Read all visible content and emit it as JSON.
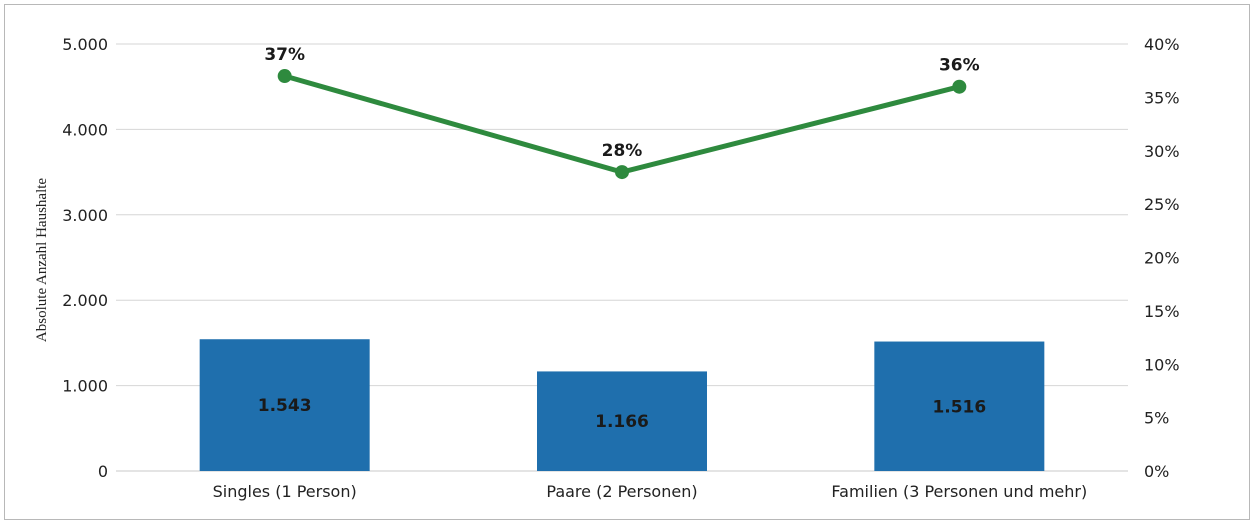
{
  "chart_data": {
    "type": "bar",
    "categories": [
      "Singles (1 Person)",
      "Paare (2 Personen)",
      "Familien (3 Personen und mehr)"
    ],
    "series": [
      {
        "type": "bar",
        "axis": "left",
        "values": [
          1543,
          1166,
          1516
        ],
        "labels": [
          "1.543",
          "1.166",
          "1.516"
        ],
        "color": "#1f6fad"
      },
      {
        "type": "line",
        "axis": "right",
        "values": [
          37,
          28,
          36
        ],
        "labels": [
          "37%",
          "28%",
          "36%"
        ],
        "color": "#2e8a3e"
      }
    ],
    "title": "",
    "xlabel": "",
    "ylabel": "Absolute Anzahl Haushalte",
    "ylim": [
      0,
      5000
    ],
    "y2lim": [
      0,
      40
    ],
    "yticks": [
      "0",
      "1.000",
      "2.000",
      "3.000",
      "4.000",
      "5.000"
    ],
    "y2ticks": [
      "0%",
      "5%",
      "10%",
      "15%",
      "20%",
      "25%",
      "30%",
      "35%",
      "40%"
    ],
    "grid": true,
    "legend": "none"
  }
}
